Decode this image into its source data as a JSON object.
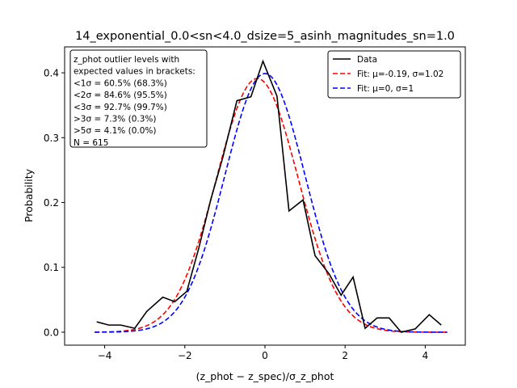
{
  "chart_data": {
    "type": "line",
    "title": "14_exponential_0.0<sn<4.0_dsize=5_asinh_magnitudes_sn=1.0",
    "xlabel": "(z_phot − z_spec)/σ_z_phot",
    "ylabel": "Probability",
    "xlim": [
      -5,
      5
    ],
    "ylim": [
      -0.02,
      0.44
    ],
    "xticks": [
      -4,
      -2,
      0,
      2,
      4
    ],
    "yticks": [
      0.0,
      0.1,
      0.2,
      0.3,
      0.4
    ],
    "xtick_labels": [
      "−4",
      "−2",
      "0",
      "2",
      "4"
    ],
    "ytick_labels": [
      "0.0",
      "0.1",
      "0.2",
      "0.3",
      "0.4"
    ],
    "grid": false,
    "legend_position": "top-right",
    "series": [
      {
        "name": "Data",
        "style": "solid",
        "color": "#000000",
        "x": [
          -4.2,
          -3.9,
          -3.6,
          -3.25,
          -2.95,
          -2.55,
          -2.25,
          -1.95,
          -1.65,
          -1.35,
          -1.05,
          -0.7,
          -0.35,
          -0.05,
          0.3,
          0.6,
          0.95,
          1.25,
          1.6,
          1.9,
          2.2,
          2.5,
          2.8,
          3.1,
          3.4,
          3.75,
          4.1,
          4.4
        ],
        "y": [
          0.016,
          0.011,
          0.011,
          0.006,
          0.032,
          0.054,
          0.047,
          0.063,
          0.13,
          0.205,
          0.27,
          0.357,
          0.363,
          0.418,
          0.364,
          0.187,
          0.204,
          0.118,
          0.09,
          0.057,
          0.085,
          0.006,
          0.022,
          0.022,
          0.0,
          0.005,
          0.027,
          0.011
        ]
      },
      {
        "name": "Fit: μ=-0.19, σ=1.02",
        "style": "dashed",
        "color": "#ff0000",
        "mu": -0.19,
        "sigma": 1.02
      },
      {
        "name": "Fit: μ=0, σ=1",
        "style": "dashed",
        "color": "#0000ff",
        "mu": 0,
        "sigma": 1
      }
    ],
    "curve_x_range": [
      -4.25,
      4.55
    ],
    "annotation": {
      "lines": [
        "z_phot outlier levels with",
        " expected values in brackets:",
        "<1σ = 60.5% (68.3%)",
        "<2σ = 84.6% (95.5%)",
        "<3σ = 92.7% (99.7%)",
        ">3σ = 7.3% (0.3%)",
        ">5σ = 4.1% (0.0%)",
        "N = 615"
      ]
    }
  }
}
